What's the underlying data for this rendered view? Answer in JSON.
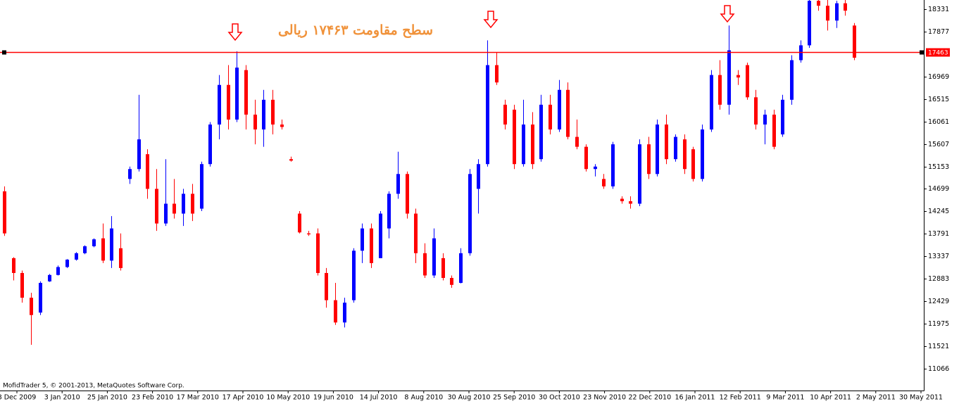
{
  "chart_data": {
    "type": "candlestick",
    "annotation": "سطح مقاومت ۱۷۴۶۳ ریالی",
    "credit": "MofidTrader 5, © 2001-2013, MetaQuotes Software Corp.",
    "up_color": "#0000ff",
    "down_color": "#ff0000",
    "resistance": {
      "value": 17463,
      "color": "#ff0000"
    },
    "ylim": [
      10625,
      18516
    ],
    "yticks": [
      18331,
      17877,
      16969,
      16515,
      16061,
      15607,
      15153,
      14699,
      14245,
      13791,
      13337,
      12883,
      12429,
      11975,
      11521,
      11066
    ],
    "x_labels": [
      "8 Dec 2009",
      "3 Jan 2010",
      "25 Jan 2010",
      "23 Feb 2010",
      "17 Mar 2010",
      "17 Apr 2010",
      "10 May 2010",
      "19 Jun 2010",
      "14 Jul 2010",
      "8 Aug 2010",
      "30 Aug 2010",
      "25 Sep 2010",
      "30 Oct 2010",
      "23 Nov 2010",
      "22 Dec 2010",
      "16 Jan 2011",
      "12 Feb 2011",
      "9 Mar 2011",
      "10 Apr 2011",
      "2 May 2011",
      "30 May 2011"
    ],
    "open": [
      14650,
      13300,
      13000,
      12500,
      12200,
      12830,
      12960,
      13120,
      13270,
      13400,
      13540,
      13700,
      13250,
      13500,
      14900,
      15100,
      15400,
      14700,
      14000,
      14400,
      14200,
      14600,
      14300,
      15200,
      16000,
      16800,
      16100,
      17100,
      16200,
      15900,
      16500,
      16000,
      15300,
      14200,
      13800,
      13800,
      13000,
      12450,
      12000,
      12450,
      13450,
      13900,
      13300,
      13900,
      14600,
      15000,
      14200,
      13400,
      12950,
      13300,
      12900,
      12800,
      13400,
      14700,
      15200,
      17200,
      16400,
      16300,
      15200,
      16000,
      15300,
      16400,
      15900,
      16700,
      15750,
      15550,
      15100,
      14900,
      14750,
      14500,
      14450,
      14400,
      15600,
      15000,
      16000,
      15300,
      15700,
      15500,
      14900,
      15900,
      17000,
      16400,
      17000,
      17200,
      16550,
      16000,
      16200,
      15800,
      16500,
      17300,
      17600,
      18500,
      18400,
      18100,
      18450,
      18000
    ],
    "high": [
      14750,
      13320,
      13050,
      12600,
      12830,
      12980,
      13150,
      13280,
      13420,
      13560,
      13700,
      14000,
      14150,
      13800,
      15150,
      16600,
      15500,
      15100,
      15300,
      14900,
      14700,
      14800,
      15250,
      16050,
      17000,
      17200,
      17480,
      17200,
      16500,
      16700,
      16700,
      16100,
      15350,
      14250,
      13850,
      13900,
      13100,
      12800,
      12500,
      13500,
      14000,
      14000,
      14250,
      14650,
      15450,
      15050,
      14300,
      13600,
      13900,
      13400,
      12950,
      13500,
      15100,
      15300,
      17700,
      17450,
      16500,
      16400,
      16500,
      16250,
      16600,
      16600,
      16900,
      16850,
      16100,
      15600,
      15200,
      15000,
      15650,
      14550,
      14550,
      15700,
      15750,
      16100,
      16200,
      15800,
      15800,
      15550,
      16000,
      17100,
      17300,
      18000,
      17100,
      17250,
      16700,
      16300,
      16300,
      16600,
      17400,
      17700,
      18550,
      18700,
      18600,
      18500,
      18600,
      18050
    ],
    "low": [
      13750,
      12850,
      12400,
      11550,
      12150,
      12820,
      12950,
      13100,
      13250,
      13380,
      13520,
      13200,
      13100,
      13050,
      14800,
      15050,
      14500,
      13850,
      13950,
      14100,
      13950,
      14050,
      14250,
      15150,
      15700,
      15900,
      16050,
      15900,
      15600,
      15550,
      15800,
      15900,
      15250,
      13800,
      13750,
      12950,
      12300,
      11950,
      11900,
      12400,
      13200,
      13100,
      13300,
      13700,
      14500,
      14100,
      13200,
      12900,
      12900,
      12850,
      12700,
      12790,
      13350,
      14200,
      15150,
      16800,
      15900,
      15100,
      15150,
      15100,
      15250,
      15800,
      15850,
      15700,
      15500,
      15050,
      14950,
      14700,
      14700,
      14400,
      14300,
      14350,
      14900,
      14950,
      15200,
      15250,
      15000,
      14850,
      14850,
      15850,
      16300,
      16200,
      16800,
      16500,
      15900,
      15600,
      15500,
      15750,
      16400,
      17250,
      17550,
      18300,
      17900,
      17950,
      18200,
      17300
    ],
    "close": [
      13800,
      13000,
      12500,
      12150,
      12800,
      12960,
      13120,
      13270,
      13400,
      13540,
      13680,
      13250,
      13900,
      13100,
      15100,
      15700,
      14700,
      14000,
      14400,
      14200,
      14600,
      14200,
      15200,
      16000,
      16800,
      16100,
      17150,
      16200,
      15900,
      16500,
      16000,
      15950,
      15270,
      13820,
      13780,
      13000,
      12450,
      12000,
      12400,
      13450,
      13900,
      13200,
      14200,
      14600,
      15000,
      14200,
      13400,
      12950,
      13700,
      12900,
      12760,
      13400,
      15000,
      15200,
      17200,
      16850,
      16000,
      15200,
      16000,
      15200,
      16400,
      15900,
      16700,
      15750,
      15550,
      15100,
      15150,
      14750,
      15600,
      14450,
      14400,
      15600,
      15000,
      16000,
      15300,
      15750,
      15100,
      14900,
      15900,
      17000,
      16400,
      17500,
      16950,
      16550,
      16000,
      16200,
      15550,
      16500,
      17300,
      17600,
      18500,
      18400,
      18100,
      18450,
      18300,
      17350
    ]
  }
}
